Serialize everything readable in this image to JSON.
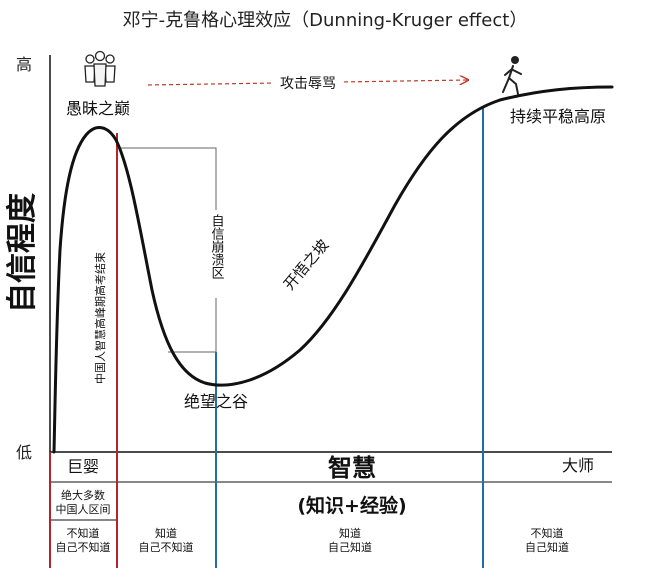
{
  "title": "邓宁-克鲁格心理效应（Dunning-Kruger effect）",
  "y_axis": {
    "label": "自信程度",
    "high": "高",
    "low": "低"
  },
  "x_axis": {
    "label": "智慧",
    "sublabel": "(知识+经验)",
    "start": "巨婴",
    "end": "大师"
  },
  "curve_labels": {
    "peak": "愚昧之巅",
    "valley": "绝望之谷",
    "slope": "开悟之坡",
    "plateau": "持续平稳高原",
    "collapse": "自信崩溃区",
    "insult": "攻击辱骂"
  },
  "annotations": {
    "red_line_note": "中国人智慧高峰期高考结束",
    "region_note_line1": "绝大多数",
    "region_note_line2": "中国人区间"
  },
  "stages": [
    {
      "line1": "不知道",
      "line2": "自己不知道"
    },
    {
      "line1": "知道",
      "line2": "自己不知道"
    },
    {
      "line1": "知道",
      "line2": "自己知道"
    },
    {
      "line1": "不知道",
      "line2": "自己知道"
    }
  ],
  "icons": [
    "crowd-icon",
    "walker-icon"
  ],
  "colors": {
    "red": "#b3242b",
    "blue": "#1f6fa6",
    "dashed_arrow": "#c0392b",
    "curve": "#111111",
    "bracket": "#555555"
  }
}
